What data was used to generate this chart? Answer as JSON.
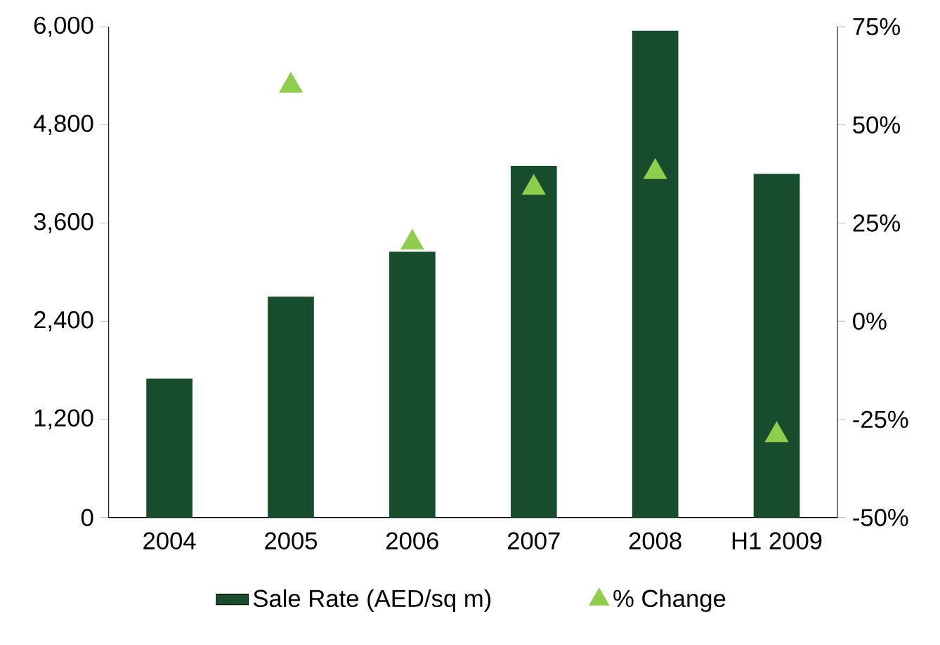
{
  "chart_data": {
    "type": "bar",
    "categories": [
      "2004",
      "2005",
      "2006",
      "2007",
      "2008",
      "H1 2009"
    ],
    "series": [
      {
        "name": "Sale Rate (AED/sq m)",
        "color": "#174d2c",
        "values": [
          1700,
          2700,
          3250,
          4300,
          5950,
          4200
        ]
      },
      {
        "name": "% Change",
        "type": "scatter",
        "axis": "y2",
        "marker": "triangle",
        "color": "#8fce4c",
        "values": [
          null,
          60,
          20,
          34,
          38,
          -29
        ]
      }
    ],
    "ylim": [
      0,
      6000
    ],
    "yticks": [
      {
        "value": 0,
        "label": "0"
      },
      {
        "value": 1200,
        "label": "1,200"
      },
      {
        "value": 2400,
        "label": "2,400"
      },
      {
        "value": 3600,
        "label": "3,600"
      },
      {
        "value": 4800,
        "label": "4,800"
      },
      {
        "value": 6000,
        "label": "6,000"
      }
    ],
    "y2lim": [
      -50,
      75
    ],
    "y2ticks": [
      {
        "value": -50,
        "label": "-50%"
      },
      {
        "value": -25,
        "label": "-25%"
      },
      {
        "value": 0,
        "label": "0%"
      },
      {
        "value": 25,
        "label": "25%"
      },
      {
        "value": 50,
        "label": "50%"
      },
      {
        "value": 75,
        "label": "75%"
      }
    ],
    "legend": "bottom"
  }
}
